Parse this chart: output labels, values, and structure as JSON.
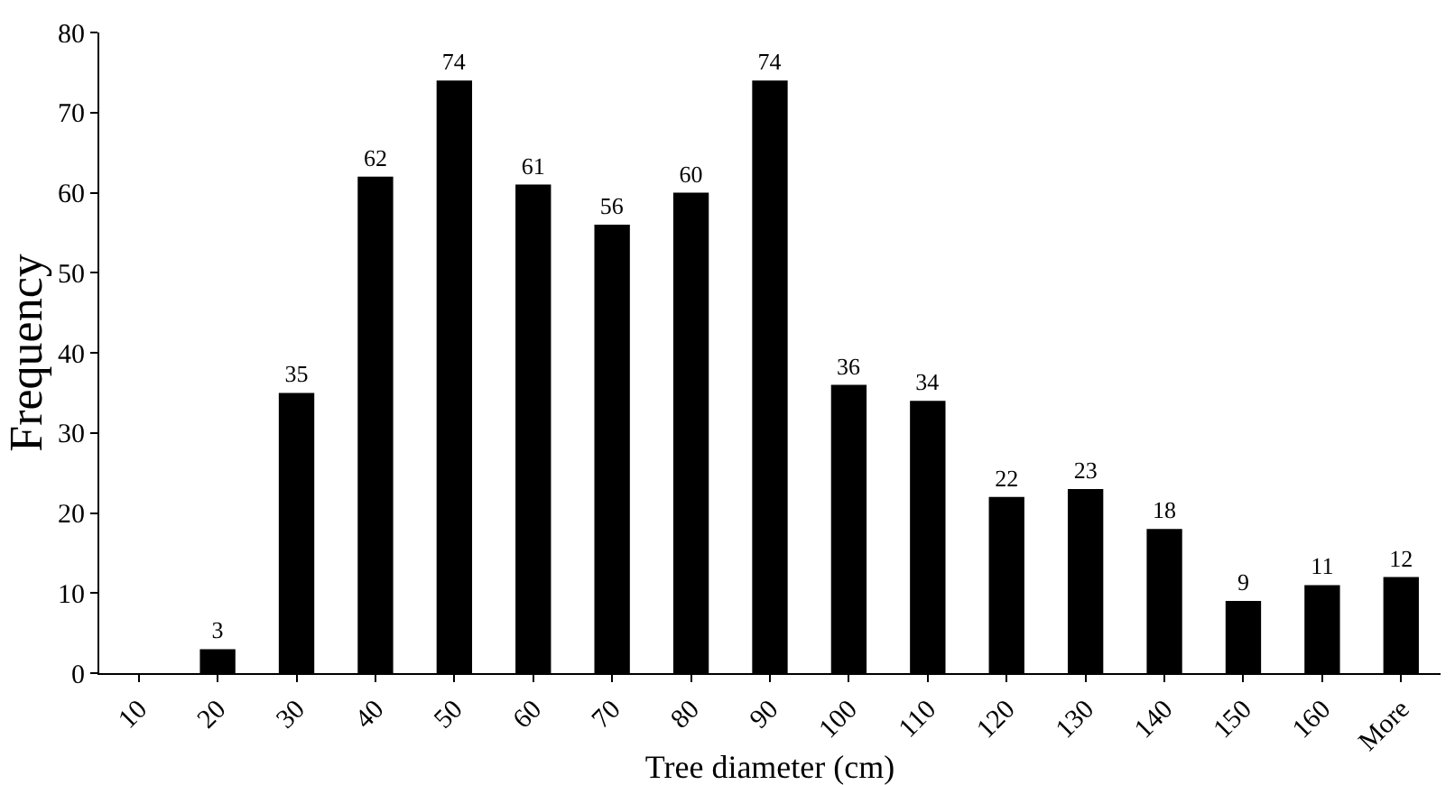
{
  "chart_data": {
    "type": "bar",
    "xlabel": "Tree diameter (cm)",
    "ylabel": "Frequency",
    "categories": [
      "10",
      "20",
      "30",
      "40",
      "50",
      "60",
      "70",
      "80",
      "90",
      "100",
      "110",
      "120",
      "130",
      "140",
      "150",
      "160",
      "More"
    ],
    "values": [
      0,
      3,
      35,
      62,
      74,
      61,
      56,
      60,
      74,
      36,
      34,
      22,
      23,
      18,
      9,
      11,
      12
    ],
    "value_labels": [
      null,
      "3",
      "35",
      "62",
      "74",
      "61",
      "56",
      "60",
      "74",
      "36",
      "34",
      "22",
      "23",
      "18",
      "9",
      "11",
      "12"
    ],
    "color": "#000000",
    "ylim": [
      0,
      80
    ],
    "yticks": [
      0,
      10,
      20,
      30,
      40,
      50,
      60,
      70,
      80
    ],
    "grid": false,
    "legend": false
  }
}
